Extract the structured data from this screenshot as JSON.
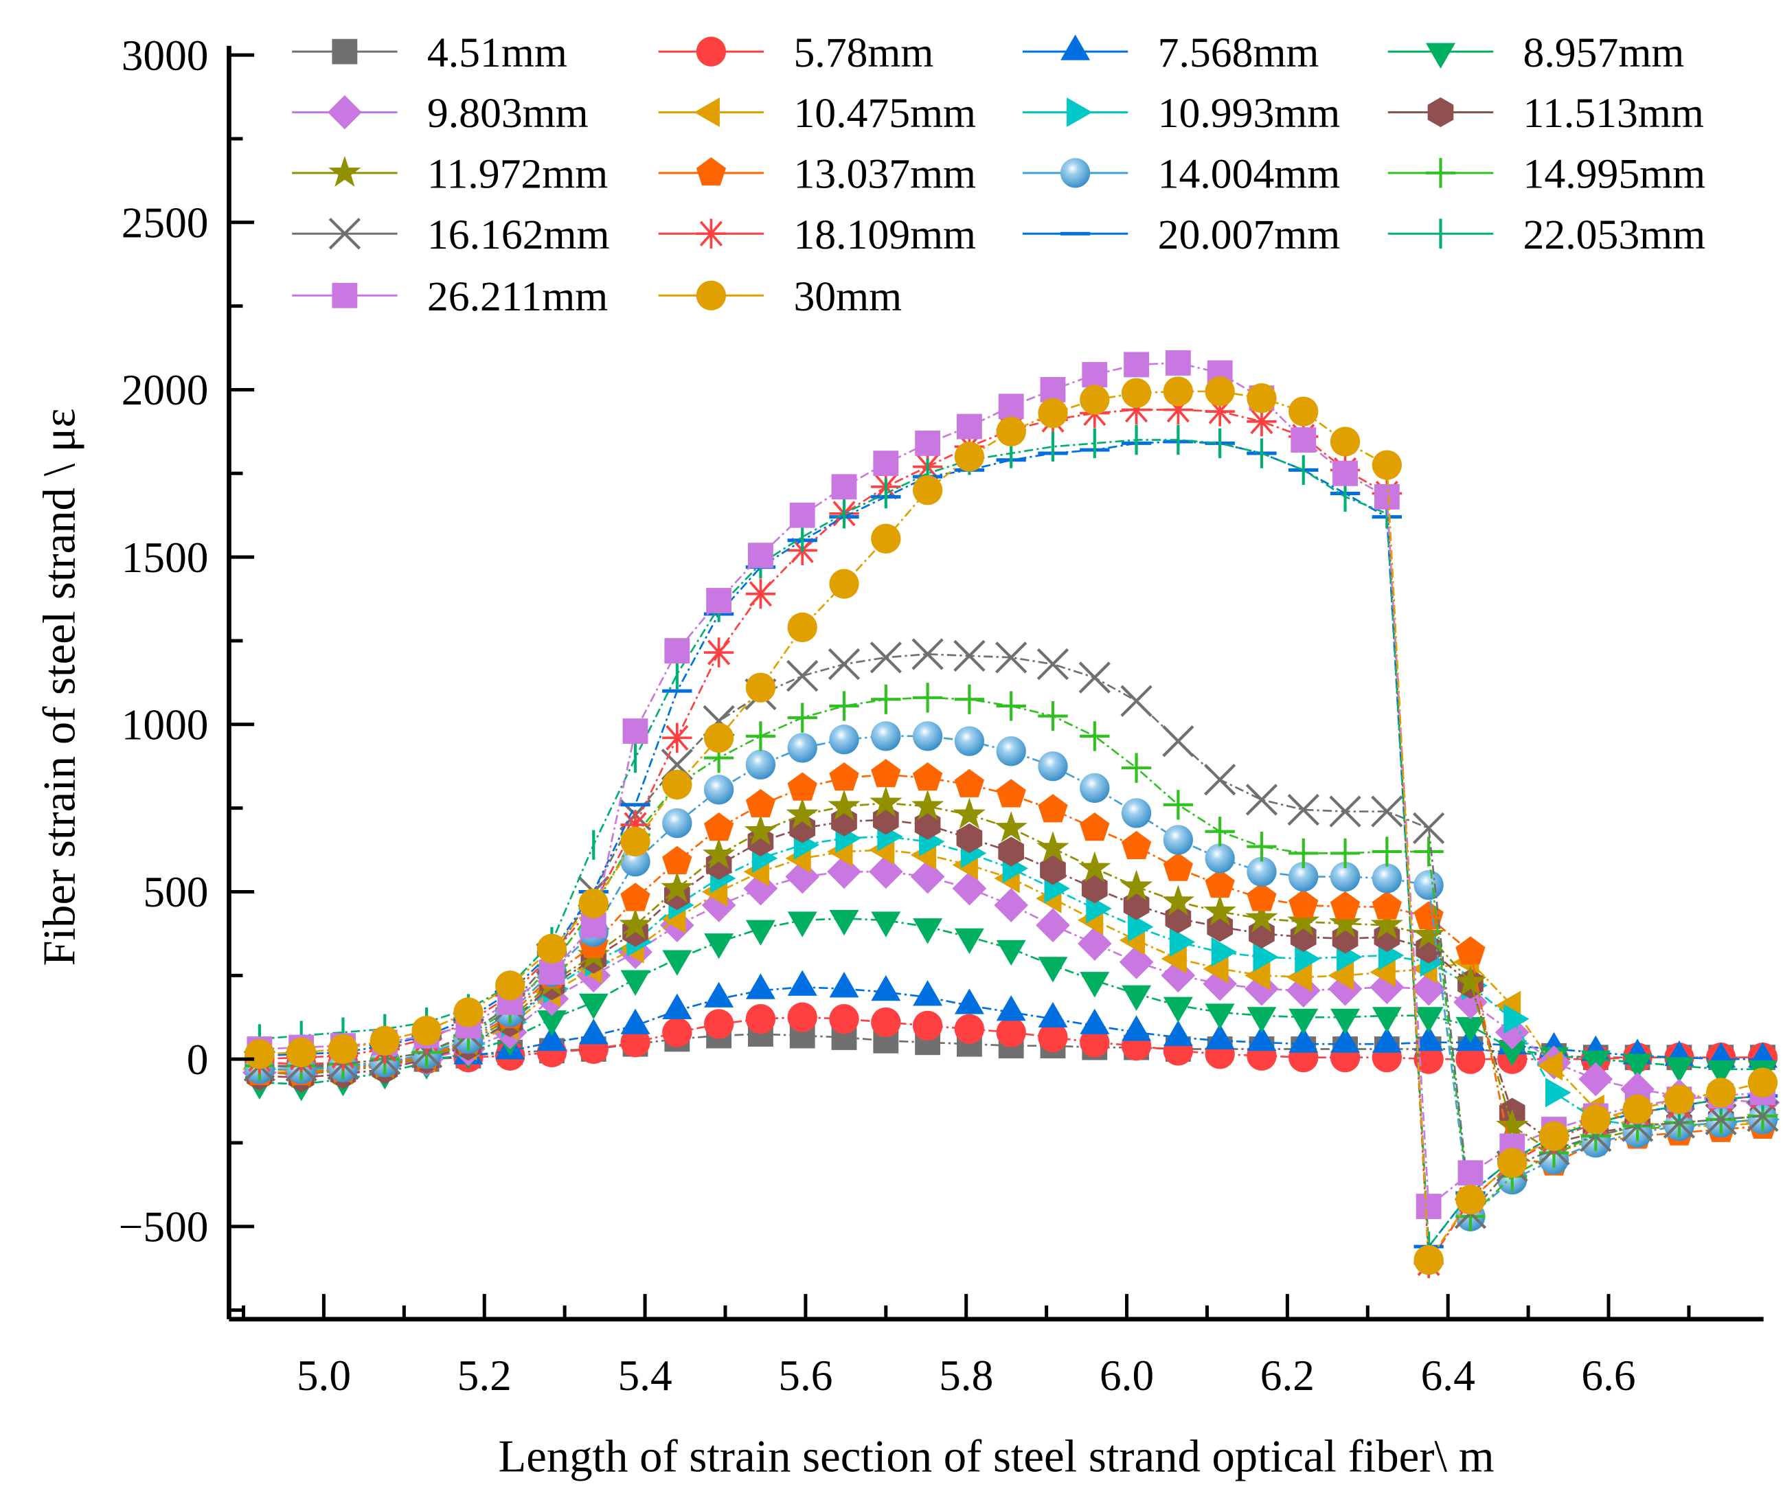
{
  "chart_data": {
    "type": "line",
    "title": "",
    "xlabel": "Length of strain section of steel strand optical fiber\\ m",
    "ylabel": "Fiber strain of steel strand \\ με",
    "xlim": [
      4.882,
      6.793
    ],
    "ylim": [
      -777,
      3000
    ],
    "xticks": [
      "5.0",
      "5.2",
      "5.4",
      "5.6",
      "5.8",
      "6.0",
      "6.2",
      "6.4",
      "6.6"
    ],
    "xtick_values": [
      5.0,
      5.2,
      5.4,
      5.6,
      5.8,
      6.0,
      6.2,
      6.4,
      6.6
    ],
    "yticks": [
      "3000",
      "2500",
      "2000",
      "1500",
      "1000",
      "500",
      "0",
      "-500"
    ],
    "ytick_values": [
      3000,
      2500,
      2000,
      1500,
      1000,
      500,
      0,
      -500
    ],
    "grid": false,
    "legend_position": "top",
    "x": [
      4.92,
      4.972,
      5.024,
      5.076,
      5.128,
      5.18,
      5.232,
      5.284,
      5.336,
      5.388,
      5.44,
      5.492,
      5.544,
      5.596,
      5.648,
      5.7,
      5.752,
      5.804,
      5.856,
      5.908,
      5.96,
      6.012,
      6.064,
      6.116,
      6.168,
      6.22,
      6.272,
      6.324,
      6.376,
      6.428,
      6.48,
      6.532,
      6.584,
      6.636,
      6.688,
      6.74,
      6.792
    ],
    "series": [
      {
        "name": "4.51mm",
        "marker": "square",
        "color": "#707070",
        "values": [
          -20,
          -25,
          -20,
          -10,
          0,
          10,
          20,
          25,
          30,
          45,
          60,
          70,
          75,
          70,
          65,
          55,
          50,
          45,
          40,
          40,
          35,
          35,
          30,
          30,
          30,
          30,
          30,
          30,
          30,
          30,
          20,
          10,
          5,
          5,
          5,
          5,
          5
        ]
      },
      {
        "name": "5.78mm",
        "marker": "circle",
        "color": "#ff4040",
        "values": [
          -10,
          -15,
          -10,
          -5,
          0,
          5,
          10,
          20,
          30,
          50,
          80,
          105,
          120,
          125,
          120,
          110,
          100,
          90,
          80,
          65,
          50,
          40,
          25,
          15,
          10,
          5,
          5,
          5,
          0,
          0,
          0,
          0,
          0,
          5,
          5,
          5,
          5
        ]
      },
      {
        "name": "7.568mm",
        "marker": "triangle-up",
        "color": "#0070e0",
        "values": [
          -30,
          -30,
          -25,
          -15,
          0,
          10,
          25,
          50,
          70,
          100,
          145,
          180,
          205,
          215,
          210,
          200,
          185,
          160,
          140,
          120,
          100,
          80,
          65,
          55,
          50,
          45,
          45,
          45,
          50,
          50,
          40,
          30,
          20,
          10,
          5,
          0,
          0
        ]
      },
      {
        "name": "8.957mm",
        "marker": "triangle-down",
        "color": "#00b060",
        "values": [
          -70,
          -75,
          -60,
          -40,
          -10,
          20,
          60,
          120,
          170,
          240,
          300,
          350,
          390,
          415,
          420,
          415,
          395,
          365,
          330,
          280,
          235,
          195,
          160,
          140,
          130,
          125,
          125,
          130,
          130,
          100,
          30,
          10,
          0,
          -10,
          -20,
          -30,
          -30
        ]
      },
      {
        "name": "9.803mm",
        "marker": "diamond",
        "color": "#c878e0",
        "values": [
          -40,
          -45,
          -35,
          -20,
          0,
          30,
          80,
          180,
          250,
          320,
          400,
          460,
          510,
          545,
          560,
          560,
          545,
          510,
          460,
          400,
          345,
          290,
          250,
          225,
          210,
          205,
          210,
          215,
          210,
          170,
          80,
          -10,
          -60,
          -90,
          -110,
          -120,
          -130
        ]
      },
      {
        "name": "10.475mm",
        "marker": "triangle-left",
        "color": "#e0a000",
        "values": [
          -30,
          -35,
          -30,
          -15,
          5,
          40,
          100,
          200,
          270,
          330,
          420,
          500,
          560,
          600,
          620,
          625,
          610,
          580,
          540,
          480,
          415,
          355,
          300,
          270,
          250,
          245,
          250,
          260,
          270,
          290,
          160,
          -20,
          -150,
          -190,
          -200,
          -200,
          -190
        ]
      },
      {
        "name": "10.993mm",
        "marker": "triangle-right",
        "color": "#00c8c8",
        "values": [
          -30,
          -30,
          -25,
          -10,
          10,
          45,
          110,
          210,
          290,
          350,
          460,
          540,
          600,
          640,
          660,
          665,
          650,
          615,
          570,
          510,
          450,
          395,
          350,
          320,
          305,
          300,
          305,
          310,
          290,
          220,
          120,
          -100,
          -180,
          -200,
          -200,
          -190,
          -180
        ]
      },
      {
        "name": "11.513mm",
        "marker": "hexagon",
        "color": "#905050",
        "values": [
          -50,
          -55,
          -45,
          -30,
          0,
          40,
          110,
          220,
          300,
          380,
          490,
          580,
          650,
          690,
          710,
          715,
          700,
          660,
          620,
          565,
          510,
          460,
          420,
          395,
          375,
          365,
          360,
          365,
          330,
          225,
          -160,
          -250,
          -220,
          -200,
          -190,
          -180,
          -170
        ]
      },
      {
        "name": "11.972mm",
        "marker": "star",
        "color": "#909000",
        "values": [
          -40,
          -45,
          -35,
          -20,
          5,
          50,
          120,
          230,
          310,
          400,
          510,
          610,
          680,
          730,
          755,
          765,
          755,
          730,
          690,
          630,
          570,
          515,
          470,
          440,
          420,
          410,
          405,
          400,
          370,
          230,
          -200,
          -280,
          -240,
          -210,
          -200,
          -190,
          -180
        ]
      },
      {
        "name": "13.037mm",
        "marker": "pentagon",
        "color": "#ff6600",
        "values": [
          -40,
          -40,
          -30,
          -15,
          10,
          55,
          130,
          250,
          340,
          480,
          590,
          690,
          760,
          810,
          840,
          850,
          840,
          820,
          790,
          745,
          690,
          635,
          570,
          520,
          480,
          460,
          455,
          455,
          425,
          320,
          -300,
          -310,
          -250,
          -230,
          -220,
          -210,
          -200
        ]
      },
      {
        "name": "14.004mm",
        "marker": "ball",
        "color": "#40a0d8",
        "values": [
          -30,
          -30,
          -25,
          -10,
          15,
          60,
          140,
          260,
          380,
          590,
          705,
          805,
          880,
          930,
          955,
          965,
          965,
          950,
          920,
          875,
          810,
          735,
          655,
          600,
          560,
          545,
          545,
          540,
          520,
          -470,
          -360,
          -300,
          -250,
          -220,
          -200,
          -190,
          -180
        ]
      },
      {
        "name": "14.995mm",
        "marker": "plus",
        "color": "#30c020",
        "values": [
          -20,
          -20,
          -15,
          0,
          20,
          70,
          150,
          280,
          450,
          670,
          820,
          900,
          965,
          1020,
          1055,
          1075,
          1080,
          1075,
          1055,
          1025,
          965,
          870,
          760,
          680,
          635,
          615,
          615,
          620,
          620,
          -470,
          -350,
          -280,
          -230,
          -200,
          -190,
          -180,
          -170
        ]
      },
      {
        "name": "16.162mm",
        "marker": "cross",
        "color": "#707070",
        "values": [
          -20,
          -20,
          -15,
          0,
          20,
          75,
          160,
          300,
          500,
          730,
          880,
          1010,
          1090,
          1145,
          1180,
          1200,
          1210,
          1205,
          1200,
          1180,
          1140,
          1070,
          950,
          835,
          775,
          745,
          740,
          740,
          690,
          -460,
          -320,
          -270,
          -230,
          -200,
          -190,
          -180,
          -170
        ]
      },
      {
        "name": "18.109mm",
        "marker": "asterisk",
        "color": "#ff4040",
        "values": [
          0,
          5,
          10,
          30,
          60,
          110,
          190,
          310,
          460,
          700,
          960,
          1215,
          1390,
          1520,
          1630,
          1710,
          1770,
          1830,
          1880,
          1910,
          1930,
          1940,
          1940,
          1935,
          1905,
          1860,
          1760,
          1690,
          -610,
          -420,
          -310,
          -240,
          -190,
          -160,
          -140,
          -120,
          -110
        ]
      },
      {
        "name": "20.007mm",
        "marker": "hline",
        "color": "#0070e0",
        "values": [
          10,
          15,
          20,
          40,
          70,
          120,
          200,
          320,
          500,
          760,
          1100,
          1330,
          1470,
          1550,
          1620,
          1680,
          1740,
          1760,
          1790,
          1810,
          1820,
          1840,
          1845,
          1840,
          1810,
          1760,
          1690,
          1620,
          -560,
          -400,
          -300,
          -230,
          -190,
          -160,
          -140,
          -120,
          -110
        ]
      },
      {
        "name": "22.053mm",
        "marker": "vline",
        "color": "#00b070",
        "values": [
          60,
          70,
          80,
          90,
          110,
          150,
          220,
          350,
          640,
          900,
          1150,
          1350,
          1480,
          1560,
          1630,
          1690,
          1750,
          1790,
          1810,
          1830,
          1840,
          1850,
          1850,
          1840,
          1810,
          1760,
          1680,
          1630,
          -560,
          -400,
          -300,
          -230,
          -190,
          -160,
          -140,
          -120,
          -110
        ]
      },
      {
        "name": "26.211mm",
        "marker": "square",
        "color": "#c878e0",
        "values": [
          30,
          35,
          40,
          50,
          70,
          100,
          170,
          260,
          400,
          980,
          1220,
          1370,
          1505,
          1625,
          1710,
          1780,
          1840,
          1890,
          1950,
          2000,
          2045,
          2075,
          2080,
          2050,
          1975,
          1850,
          1750,
          1680,
          -440,
          -340,
          -260,
          -210,
          -170,
          -140,
          -120,
          -110,
          -100
        ]
      },
      {
        "name": "30mm",
        "marker": "circle",
        "color": "#e0a000",
        "values": [
          15,
          20,
          30,
          55,
          85,
          140,
          220,
          330,
          465,
          650,
          820,
          960,
          1110,
          1290,
          1420,
          1555,
          1700,
          1800,
          1875,
          1930,
          1970,
          1990,
          1995,
          1995,
          1975,
          1935,
          1845,
          1775,
          -600,
          -420,
          -310,
          -230,
          -180,
          -150,
          -120,
          -100,
          -70
        ]
      }
    ]
  }
}
